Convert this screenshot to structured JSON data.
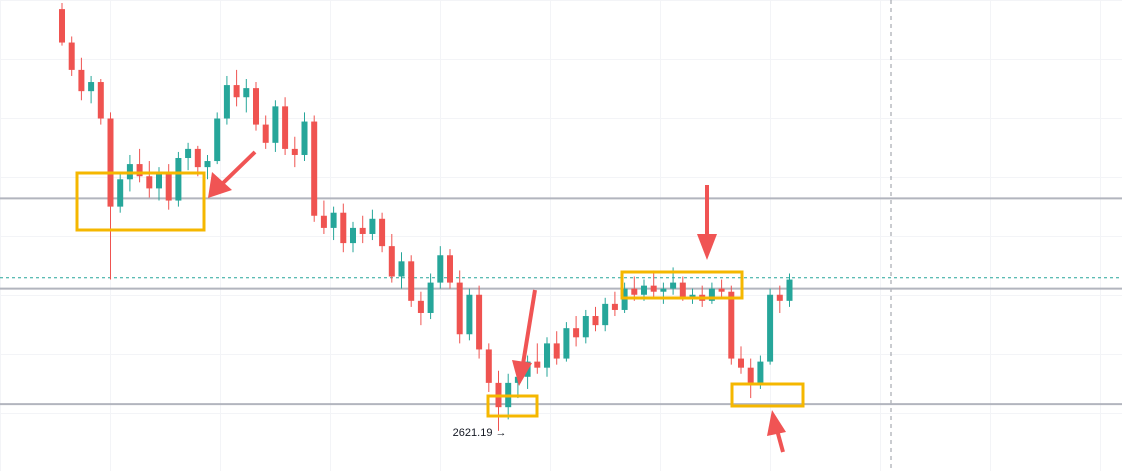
{
  "chart_data": {
    "type": "candlestick",
    "ylim": [
      2608,
      2763
    ],
    "up_color": "#26a69a",
    "down_color": "#ef5350",
    "ohlc": [
      [
        2760,
        2762,
        2748,
        2749
      ],
      [
        2749,
        2751,
        2738,
        2740
      ],
      [
        2740,
        2744,
        2730,
        2733
      ],
      [
        2733,
        2738,
        2729,
        2736
      ],
      [
        2736,
        2737,
        2722,
        2724
      ],
      [
        2724,
        2726,
        2671,
        2695
      ],
      [
        2695,
        2706,
        2693,
        2704
      ],
      [
        2704,
        2712,
        2700,
        2709
      ],
      [
        2709,
        2714,
        2703,
        2705
      ],
      [
        2705,
        2710,
        2698,
        2701
      ],
      [
        2701,
        2708,
        2697,
        2706
      ],
      [
        2706,
        2709,
        2694,
        2697
      ],
      [
        2697,
        2713,
        2695,
        2711
      ],
      [
        2711,
        2716,
        2707,
        2714
      ],
      [
        2714,
        2715,
        2705,
        2708
      ],
      [
        2708,
        2712,
        2704,
        2710
      ],
      [
        2710,
        2726,
        2709,
        2724
      ],
      [
        2724,
        2738,
        2722,
        2735
      ],
      [
        2735,
        2740,
        2728,
        2731
      ],
      [
        2731,
        2737,
        2726,
        2734
      ],
      [
        2734,
        2736,
        2720,
        2722
      ],
      [
        2722,
        2725,
        2714,
        2716
      ],
      [
        2716,
        2730,
        2713,
        2728
      ],
      [
        2728,
        2731,
        2712,
        2714
      ],
      [
        2714,
        2718,
        2708,
        2712
      ],
      [
        2712,
        2726,
        2710,
        2723
      ],
      [
        2723,
        2725,
        2690,
        2692
      ],
      [
        2692,
        2697,
        2686,
        2688
      ],
      [
        2688,
        2695,
        2684,
        2693
      ],
      [
        2693,
        2696,
        2680,
        2683
      ],
      [
        2683,
        2690,
        2680,
        2688
      ],
      [
        2688,
        2692,
        2683,
        2686
      ],
      [
        2686,
        2694,
        2684,
        2691
      ],
      [
        2691,
        2693,
        2680,
        2682
      ],
      [
        2682,
        2686,
        2670,
        2672
      ],
      [
        2672,
        2680,
        2668,
        2677
      ],
      [
        2677,
        2679,
        2662,
        2664
      ],
      [
        2664,
        2667,
        2656,
        2660
      ],
      [
        2660,
        2673,
        2658,
        2670
      ],
      [
        2670,
        2682,
        2668,
        2679
      ],
      [
        2679,
        2681,
        2668,
        2670
      ],
      [
        2670,
        2674,
        2650,
        2653
      ],
      [
        2653,
        2668,
        2651,
        2666
      ],
      [
        2666,
        2669,
        2645,
        2648
      ],
      [
        2648,
        2650,
        2634,
        2637
      ],
      [
        2637,
        2641,
        2621.19,
        2629
      ],
      [
        2629,
        2640,
        2625,
        2637
      ],
      [
        2637,
        2643,
        2632,
        2639
      ],
      [
        2639,
        2646,
        2635,
        2644
      ],
      [
        2644,
        2650,
        2640,
        2642
      ],
      [
        2642,
        2652,
        2639,
        2650
      ],
      [
        2650,
        2654,
        2643,
        2645
      ],
      [
        2645,
        2657,
        2644,
        2655
      ],
      [
        2655,
        2659,
        2649,
        2652
      ],
      [
        2652,
        2661,
        2650,
        2659
      ],
      [
        2659,
        2662,
        2654,
        2656
      ],
      [
        2656,
        2665,
        2654,
        2663
      ],
      [
        2663,
        2667,
        2659,
        2661
      ],
      [
        2661,
        2670,
        2660,
        2668
      ],
      [
        2668,
        2672,
        2664,
        2666
      ],
      [
        2666,
        2671,
        2664,
        2669
      ],
      [
        2669,
        2674,
        2665,
        2667
      ],
      [
        2667,
        2670,
        2663,
        2668
      ],
      [
        2668,
        2675,
        2666,
        2670
      ],
      [
        2670,
        2672,
        2664,
        2665
      ],
      [
        2665,
        2668,
        2663,
        2666
      ],
      [
        2666,
        2669,
        2662,
        2664
      ],
      [
        2664,
        2670,
        2663,
        2668
      ],
      [
        2668,
        2671,
        2665,
        2667
      ],
      [
        2667,
        2669,
        2643,
        2645
      ],
      [
        2645,
        2649,
        2640,
        2642
      ],
      [
        2642,
        2645,
        2632,
        2637
      ],
      [
        2637,
        2646,
        2635,
        2644
      ],
      [
        2644,
        2668,
        2643,
        2666
      ],
      [
        2666,
        2669,
        2660,
        2664
      ],
      [
        2664,
        2673,
        2662,
        2671
      ]
    ],
    "levels": [
      2697.7,
      2668,
      2630
    ],
    "level_color": "#b2b5be",
    "last_price": 2671.6,
    "low_marker": {
      "value": 2621.19,
      "label": "2621.19 →"
    }
  }
}
